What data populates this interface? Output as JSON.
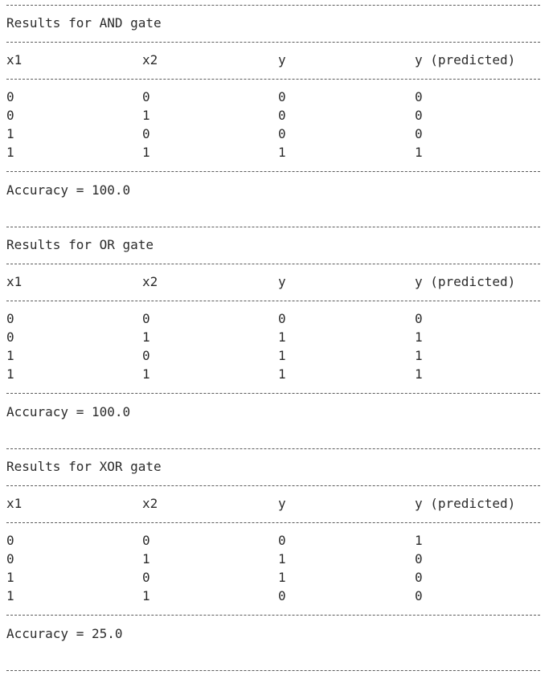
{
  "headers": [
    "x1",
    "x2",
    "y",
    "y (predicted)"
  ],
  "sections": [
    {
      "title": "Results for AND gate",
      "rows": [
        [
          "0",
          "0",
          "0",
          "0"
        ],
        [
          "0",
          "1",
          "0",
          "0"
        ],
        [
          "1",
          "0",
          "0",
          "0"
        ],
        [
          "1",
          "1",
          "1",
          "1"
        ]
      ],
      "accuracy": "Accuracy = 100.0"
    },
    {
      "title": "Results for OR gate",
      "rows": [
        [
          "0",
          "0",
          "0",
          "0"
        ],
        [
          "0",
          "1",
          "1",
          "1"
        ],
        [
          "1",
          "0",
          "1",
          "1"
        ],
        [
          "1",
          "1",
          "1",
          "1"
        ]
      ],
      "accuracy": "Accuracy = 100.0"
    },
    {
      "title": "Results for XOR gate",
      "rows": [
        [
          "0",
          "0",
          "0",
          "1"
        ],
        [
          "0",
          "1",
          "1",
          "0"
        ],
        [
          "1",
          "0",
          "1",
          "0"
        ],
        [
          "1",
          "1",
          "0",
          "0"
        ]
      ],
      "accuracy": "Accuracy = 25.0"
    }
  ]
}
